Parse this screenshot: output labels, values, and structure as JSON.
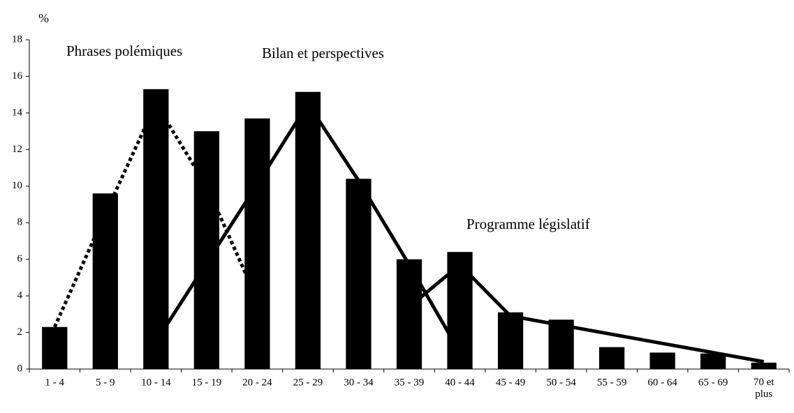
{
  "chart_data": {
    "type": "bar",
    "ylabel": "%",
    "categories": [
      "1 - 4",
      "5 - 9",
      "10 - 14",
      "15 - 19",
      "20 - 24",
      "25 - 29",
      "30 - 34",
      "35 - 39",
      "40 - 44",
      "45 - 49",
      "50 - 54",
      "55 - 59",
      "60 - 64",
      "65 - 69",
      "70 et plus"
    ],
    "values": [
      2.3,
      9.6,
      15.3,
      13.0,
      13.7,
      15.15,
      10.4,
      6.0,
      6.4,
      3.1,
      2.7,
      1.2,
      0.9,
      0.85,
      0.35
    ],
    "color": "#000000",
    "series": [
      {
        "name": "Phrases polémiques",
        "color": "#000000",
        "style": "dotted",
        "values": [
          2.3,
          8.5,
          14.5,
          10.0,
          3.8,
          null,
          null,
          null,
          null,
          null,
          null,
          null,
          null,
          null,
          null
        ]
      },
      {
        "name": "Bilan et perspectives",
        "color": "#000000",
        "style": "solid",
        "values": [
          null,
          null,
          1.5,
          5.8,
          10.1,
          14.5,
          10.3,
          5.7,
          0.9,
          null,
          null,
          null,
          null,
          null,
          null
        ]
      },
      {
        "name": "Programme législatif",
        "color": "#000000",
        "style": "solid",
        "values": [
          null,
          null,
          null,
          null,
          null,
          null,
          null,
          3.4,
          5.7,
          2.9,
          2.4,
          1.9,
          1.4,
          0.9,
          0.4
        ]
      }
    ],
    "ylim": [
      0,
      18
    ],
    "yticks": [
      0,
      2,
      4,
      6,
      8,
      10,
      12,
      14,
      16,
      18
    ]
  }
}
